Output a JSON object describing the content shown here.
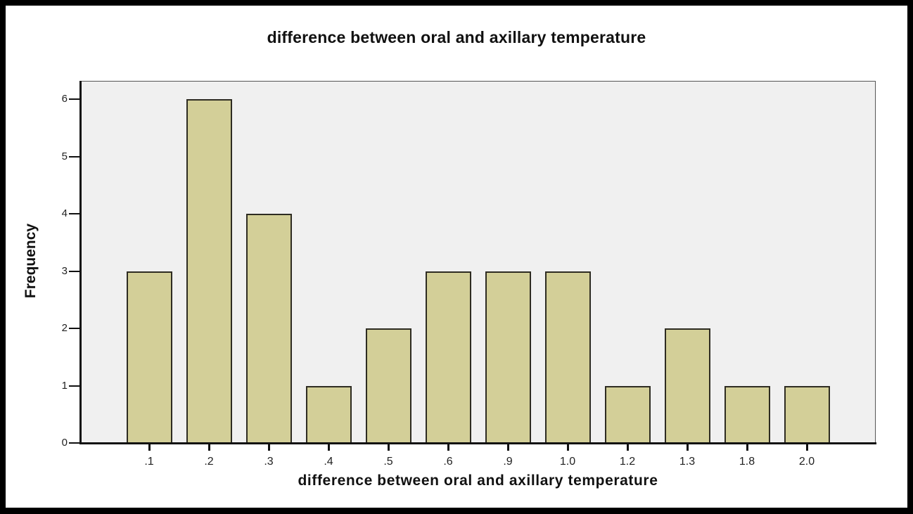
{
  "chart_data": {
    "type": "bar",
    "title": "difference between oral and axillary temperature",
    "xlabel": "difference between oral and axillary temperature",
    "ylabel": "Frequency",
    "categories": [
      ".1",
      ".2",
      ".3",
      ".4",
      ".5",
      ".6",
      ".9",
      "1.0",
      "1.2",
      "1.3",
      "1.8",
      "2.0"
    ],
    "values": [
      3,
      6,
      4,
      1,
      2,
      3,
      3,
      3,
      1,
      2,
      1,
      1
    ],
    "ylim": [
      0,
      6.3
    ],
    "yticks": [
      0,
      1,
      2,
      3,
      4,
      5,
      6
    ],
    "grid": false,
    "legend": null,
    "colors": {
      "bar_fill": "#d3cf98",
      "bar_border": "#2e2c22",
      "plot_background": "#f0f0f0",
      "frame": "#000000"
    }
  },
  "labels": {
    "title": "difference between oral and axillary temperature",
    "xaxis_title": "difference between oral and axillary temperature",
    "yaxis_title": "Frequency"
  }
}
